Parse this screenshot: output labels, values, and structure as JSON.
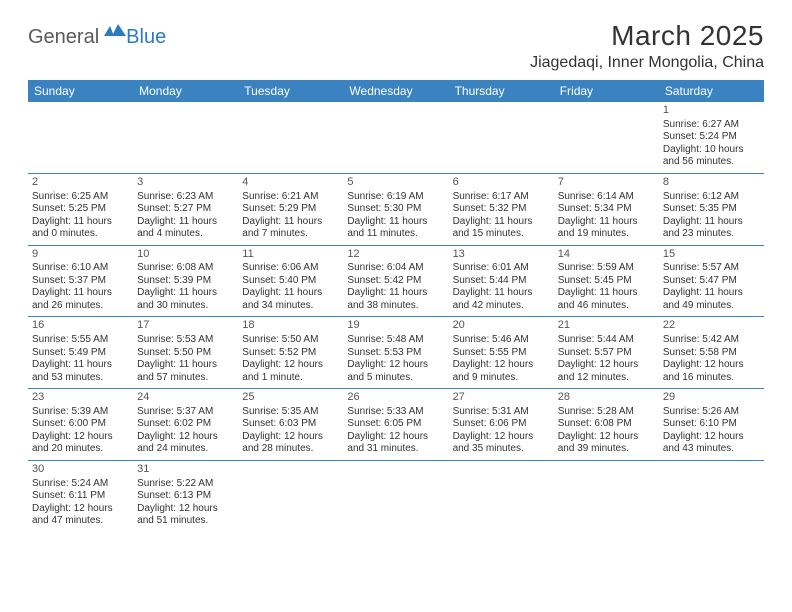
{
  "logo": {
    "general": "General",
    "blue": "Blue"
  },
  "title": "March 2025",
  "location": "Jiagedaqi, Inner Mongolia, China",
  "colors": {
    "header_bg": "#3b83c0",
    "header_text": "#ffffff",
    "border": "#3b83c0",
    "body_text": "#333333",
    "logo_gray": "#5a5a5a",
    "logo_blue": "#2b7bbf",
    "page_bg": "#ffffff"
  },
  "typography": {
    "title_fontsize": 28,
    "location_fontsize": 16,
    "dayheader_fontsize": 12,
    "cell_fontsize": 10
  },
  "day_headers": [
    "Sunday",
    "Monday",
    "Tuesday",
    "Wednesday",
    "Thursday",
    "Friday",
    "Saturday"
  ],
  "weeks": [
    [
      null,
      null,
      null,
      null,
      null,
      null,
      {
        "n": "1",
        "sr": "Sunrise: 6:27 AM",
        "ss": "Sunset: 5:24 PM",
        "dl": "Daylight: 10 hours and 56 minutes."
      }
    ],
    [
      {
        "n": "2",
        "sr": "Sunrise: 6:25 AM",
        "ss": "Sunset: 5:25 PM",
        "dl": "Daylight: 11 hours and 0 minutes."
      },
      {
        "n": "3",
        "sr": "Sunrise: 6:23 AM",
        "ss": "Sunset: 5:27 PM",
        "dl": "Daylight: 11 hours and 4 minutes."
      },
      {
        "n": "4",
        "sr": "Sunrise: 6:21 AM",
        "ss": "Sunset: 5:29 PM",
        "dl": "Daylight: 11 hours and 7 minutes."
      },
      {
        "n": "5",
        "sr": "Sunrise: 6:19 AM",
        "ss": "Sunset: 5:30 PM",
        "dl": "Daylight: 11 hours and 11 minutes."
      },
      {
        "n": "6",
        "sr": "Sunrise: 6:17 AM",
        "ss": "Sunset: 5:32 PM",
        "dl": "Daylight: 11 hours and 15 minutes."
      },
      {
        "n": "7",
        "sr": "Sunrise: 6:14 AM",
        "ss": "Sunset: 5:34 PM",
        "dl": "Daylight: 11 hours and 19 minutes."
      },
      {
        "n": "8",
        "sr": "Sunrise: 6:12 AM",
        "ss": "Sunset: 5:35 PM",
        "dl": "Daylight: 11 hours and 23 minutes."
      }
    ],
    [
      {
        "n": "9",
        "sr": "Sunrise: 6:10 AM",
        "ss": "Sunset: 5:37 PM",
        "dl": "Daylight: 11 hours and 26 minutes."
      },
      {
        "n": "10",
        "sr": "Sunrise: 6:08 AM",
        "ss": "Sunset: 5:39 PM",
        "dl": "Daylight: 11 hours and 30 minutes."
      },
      {
        "n": "11",
        "sr": "Sunrise: 6:06 AM",
        "ss": "Sunset: 5:40 PM",
        "dl": "Daylight: 11 hours and 34 minutes."
      },
      {
        "n": "12",
        "sr": "Sunrise: 6:04 AM",
        "ss": "Sunset: 5:42 PM",
        "dl": "Daylight: 11 hours and 38 minutes."
      },
      {
        "n": "13",
        "sr": "Sunrise: 6:01 AM",
        "ss": "Sunset: 5:44 PM",
        "dl": "Daylight: 11 hours and 42 minutes."
      },
      {
        "n": "14",
        "sr": "Sunrise: 5:59 AM",
        "ss": "Sunset: 5:45 PM",
        "dl": "Daylight: 11 hours and 46 minutes."
      },
      {
        "n": "15",
        "sr": "Sunrise: 5:57 AM",
        "ss": "Sunset: 5:47 PM",
        "dl": "Daylight: 11 hours and 49 minutes."
      }
    ],
    [
      {
        "n": "16",
        "sr": "Sunrise: 5:55 AM",
        "ss": "Sunset: 5:49 PM",
        "dl": "Daylight: 11 hours and 53 minutes."
      },
      {
        "n": "17",
        "sr": "Sunrise: 5:53 AM",
        "ss": "Sunset: 5:50 PM",
        "dl": "Daylight: 11 hours and 57 minutes."
      },
      {
        "n": "18",
        "sr": "Sunrise: 5:50 AM",
        "ss": "Sunset: 5:52 PM",
        "dl": "Daylight: 12 hours and 1 minute."
      },
      {
        "n": "19",
        "sr": "Sunrise: 5:48 AM",
        "ss": "Sunset: 5:53 PM",
        "dl": "Daylight: 12 hours and 5 minutes."
      },
      {
        "n": "20",
        "sr": "Sunrise: 5:46 AM",
        "ss": "Sunset: 5:55 PM",
        "dl": "Daylight: 12 hours and 9 minutes."
      },
      {
        "n": "21",
        "sr": "Sunrise: 5:44 AM",
        "ss": "Sunset: 5:57 PM",
        "dl": "Daylight: 12 hours and 12 minutes."
      },
      {
        "n": "22",
        "sr": "Sunrise: 5:42 AM",
        "ss": "Sunset: 5:58 PM",
        "dl": "Daylight: 12 hours and 16 minutes."
      }
    ],
    [
      {
        "n": "23",
        "sr": "Sunrise: 5:39 AM",
        "ss": "Sunset: 6:00 PM",
        "dl": "Daylight: 12 hours and 20 minutes."
      },
      {
        "n": "24",
        "sr": "Sunrise: 5:37 AM",
        "ss": "Sunset: 6:02 PM",
        "dl": "Daylight: 12 hours and 24 minutes."
      },
      {
        "n": "25",
        "sr": "Sunrise: 5:35 AM",
        "ss": "Sunset: 6:03 PM",
        "dl": "Daylight: 12 hours and 28 minutes."
      },
      {
        "n": "26",
        "sr": "Sunrise: 5:33 AM",
        "ss": "Sunset: 6:05 PM",
        "dl": "Daylight: 12 hours and 31 minutes."
      },
      {
        "n": "27",
        "sr": "Sunrise: 5:31 AM",
        "ss": "Sunset: 6:06 PM",
        "dl": "Daylight: 12 hours and 35 minutes."
      },
      {
        "n": "28",
        "sr": "Sunrise: 5:28 AM",
        "ss": "Sunset: 6:08 PM",
        "dl": "Daylight: 12 hours and 39 minutes."
      },
      {
        "n": "29",
        "sr": "Sunrise: 5:26 AM",
        "ss": "Sunset: 6:10 PM",
        "dl": "Daylight: 12 hours and 43 minutes."
      }
    ],
    [
      {
        "n": "30",
        "sr": "Sunrise: 5:24 AM",
        "ss": "Sunset: 6:11 PM",
        "dl": "Daylight: 12 hours and 47 minutes."
      },
      {
        "n": "31",
        "sr": "Sunrise: 5:22 AM",
        "ss": "Sunset: 6:13 PM",
        "dl": "Daylight: 12 hours and 51 minutes."
      },
      null,
      null,
      null,
      null,
      null
    ]
  ]
}
